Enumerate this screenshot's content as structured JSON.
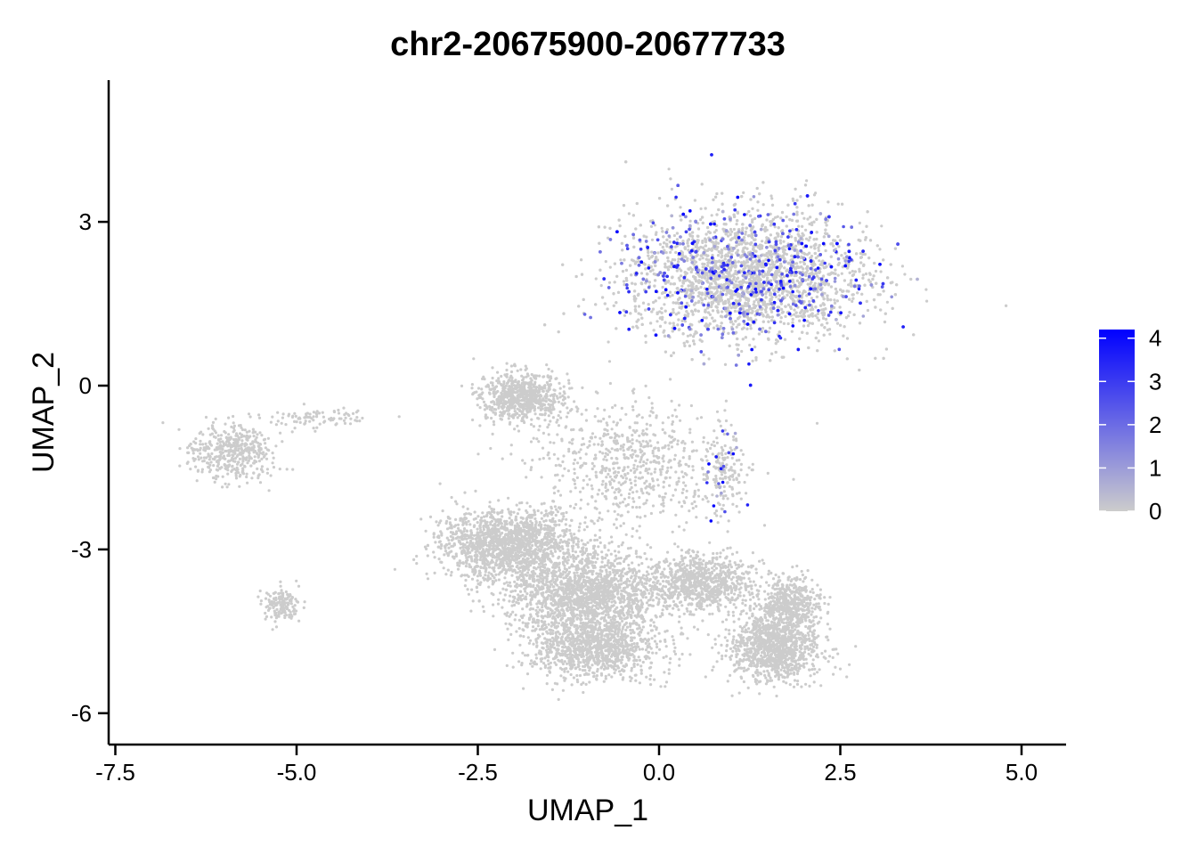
{
  "chart_data": {
    "type": "scatter",
    "title": "chr2-20675900-20677733",
    "xlabel": "UMAP_1",
    "ylabel": "UMAP_2",
    "xlim": [
      -7.6,
      5.6
    ],
    "ylim": [
      -6.6,
      5.5
    ],
    "x_ticks": [
      -7.5,
      -5.0,
      -2.5,
      0.0,
      2.5,
      5.0
    ],
    "x_tick_labels": [
      "-7.5",
      "-5.0",
      "-2.5",
      "0.0",
      "2.5",
      "5.0"
    ],
    "y_ticks": [
      -6,
      -3,
      0,
      3
    ],
    "y_tick_labels": [
      "-6",
      "-3",
      "0",
      "3"
    ],
    "grid": false,
    "legend": {
      "position": "right",
      "title": "",
      "min": 0,
      "max": 4.2,
      "ticks": [
        0,
        1,
        2,
        3,
        4
      ],
      "tick_labels": [
        "0",
        "1",
        "2",
        "3",
        "4"
      ],
      "low_color": "#CCCCCC",
      "high_color": "#0000FF"
    },
    "clusters": [
      {
        "cx": 1.2,
        "cy": 2.0,
        "sx": 1.35,
        "sy": 0.95,
        "n": 5200,
        "expressing_fraction": 0.16
      },
      {
        "cx": -1.9,
        "cy": -0.2,
        "sx": 0.45,
        "sy": 0.35,
        "n": 700,
        "expressing_fraction": 0.0
      },
      {
        "cx": -2.1,
        "cy": -2.9,
        "sx": 0.75,
        "sy": 0.5,
        "n": 1500,
        "expressing_fraction": 0.0
      },
      {
        "cx": -1.0,
        "cy": -3.8,
        "sx": 0.9,
        "sy": 0.6,
        "n": 1800,
        "expressing_fraction": 0.0
      },
      {
        "cx": -0.9,
        "cy": -4.8,
        "sx": 0.7,
        "sy": 0.45,
        "n": 1100,
        "expressing_fraction": 0.0
      },
      {
        "cx": 0.6,
        "cy": -3.6,
        "sx": 0.55,
        "sy": 0.4,
        "n": 800,
        "expressing_fraction": 0.0
      },
      {
        "cx": 1.6,
        "cy": -4.8,
        "sx": 0.5,
        "sy": 0.5,
        "n": 1100,
        "expressing_fraction": 0.0
      },
      {
        "cx": 1.8,
        "cy": -4.0,
        "sx": 0.35,
        "sy": 0.4,
        "n": 500,
        "expressing_fraction": 0.0
      },
      {
        "cx": -5.9,
        "cy": -1.2,
        "sx": 0.45,
        "sy": 0.4,
        "n": 450,
        "expressing_fraction": 0.0
      },
      {
        "cx": -5.2,
        "cy": -4.0,
        "sx": 0.2,
        "sy": 0.25,
        "n": 160,
        "expressing_fraction": 0.0
      },
      {
        "cx": -4.8,
        "cy": -0.6,
        "sx": 0.55,
        "sy": 0.15,
        "n": 90,
        "expressing_fraction": 0.0
      },
      {
        "cx": -0.4,
        "cy": -1.4,
        "sx": 1.1,
        "sy": 0.9,
        "n": 700,
        "expressing_fraction": 0.0
      },
      {
        "cx": 0.9,
        "cy": -1.6,
        "sx": 0.2,
        "sy": 0.6,
        "n": 150,
        "expressing_fraction": 0.15
      }
    ],
    "expression_value_range": [
      0.5,
      4.2
    ]
  }
}
